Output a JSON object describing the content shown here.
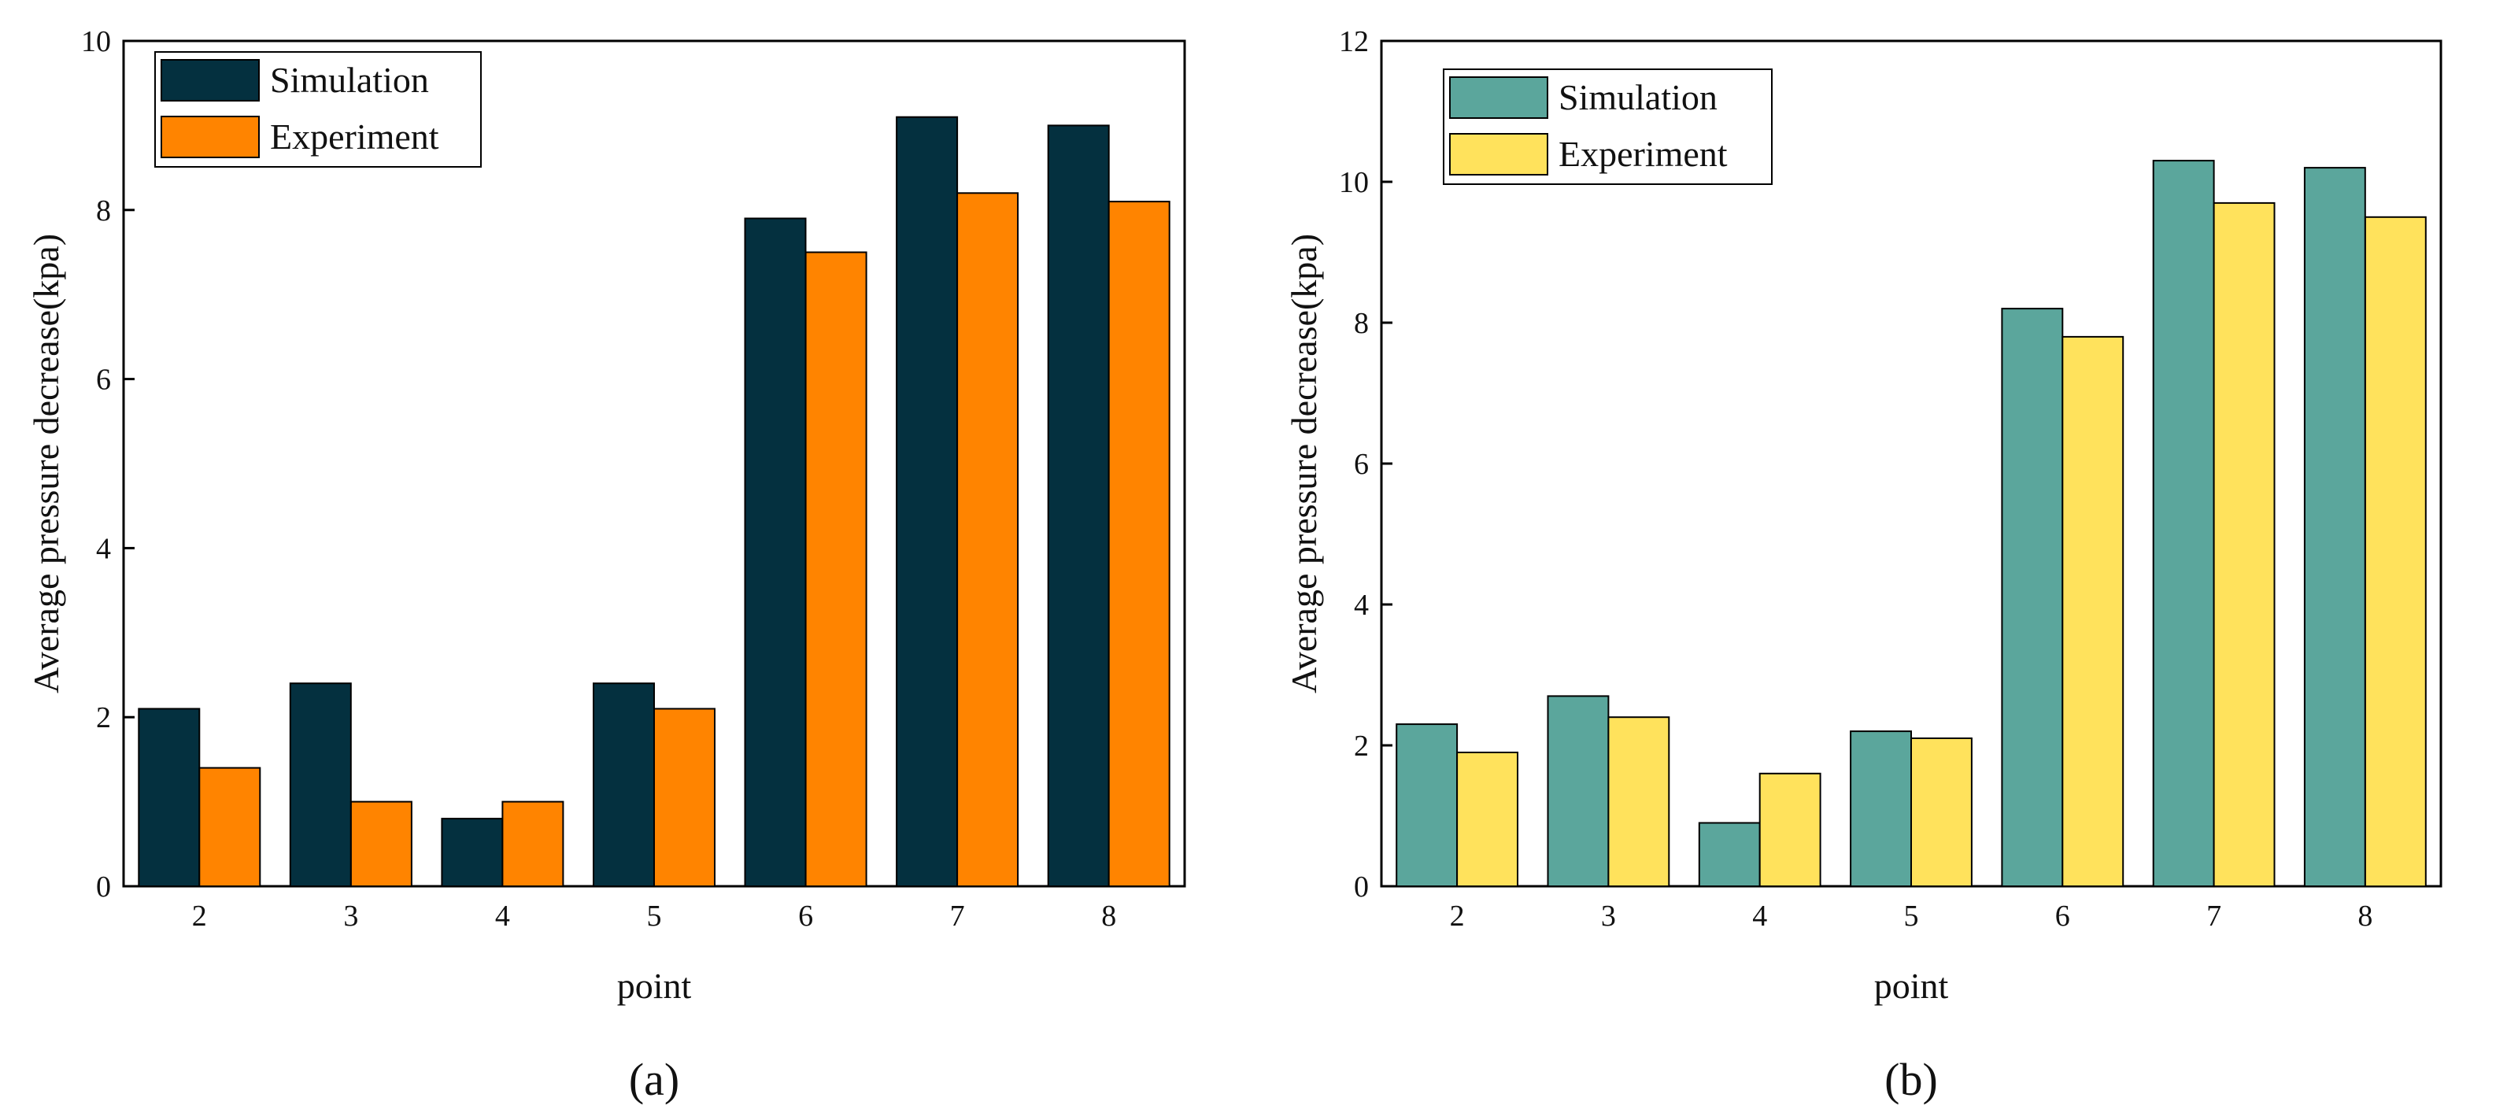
{
  "chart_data": [
    {
      "type": "bar",
      "panel_label": "(a)",
      "categories": [
        "2",
        "3",
        "4",
        "5",
        "6",
        "7",
        "8"
      ],
      "series": [
        {
          "name": "Simulation",
          "color": "#04303f",
          "values": [
            2.1,
            2.4,
            0.8,
            2.4,
            7.9,
            9.1,
            9.0
          ]
        },
        {
          "name": "Experiment",
          "color": "#ff8400",
          "values": [
            1.4,
            1.0,
            1.0,
            2.1,
            7.5,
            8.2,
            8.1
          ]
        }
      ],
      "xlabel": "point",
      "ylabel": "Average pressure decrease(kpa)",
      "ylim": [
        0,
        10
      ],
      "yticks": [
        "0",
        "2",
        "4",
        "6",
        "8",
        "10"
      ],
      "legend_position": "top-left"
    },
    {
      "type": "bar",
      "panel_label": "(b)",
      "categories": [
        "2",
        "3",
        "4",
        "5",
        "6",
        "7",
        "8"
      ],
      "series": [
        {
          "name": "Simulation",
          "color": "#5ba69c",
          "values": [
            2.3,
            2.7,
            0.9,
            2.2,
            8.2,
            10.3,
            10.2
          ]
        },
        {
          "name": "Experiment",
          "color": "#ffe25c",
          "values": [
            1.9,
            2.4,
            1.6,
            2.1,
            7.8,
            9.7,
            9.5
          ]
        }
      ],
      "xlabel": "point",
      "ylabel": "Average pressure decrease(kpa)",
      "ylim": [
        0,
        12
      ],
      "yticks": [
        "0",
        "2",
        "4",
        "6",
        "8",
        "10",
        "12"
      ],
      "legend_position": "top-left"
    }
  ]
}
